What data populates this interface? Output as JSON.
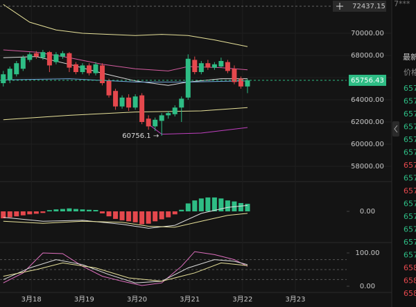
{
  "chart_data": [
    {
      "type": "candlestick",
      "up_color": "#2ebd85",
      "down_color": "#e5484d",
      "x": [
        0,
        1,
        2,
        3,
        4,
        5,
        6,
        7,
        8,
        9,
        10,
        11,
        12,
        13,
        14,
        15,
        16,
        17,
        18,
        19,
        20,
        21,
        22,
        23,
        24,
        25,
        26,
        27,
        28,
        29,
        30,
        31,
        32,
        33,
        34,
        35,
        36,
        37
      ],
      "open": [
        65500,
        65800,
        66300,
        66800,
        67600,
        68200,
        67800,
        68300,
        67400,
        67900,
        68200,
        67200,
        66500,
        67100,
        66400,
        67100,
        65700,
        64800,
        63400,
        64200,
        63300,
        64400,
        62300,
        61600,
        62100,
        62600,
        62700,
        63300,
        64200,
        67600,
        66500,
        67300,
        66900,
        67000,
        67400,
        66800,
        65900,
        65200
      ],
      "high": [
        66600,
        67000,
        67500,
        68000,
        68300,
        68400,
        68500,
        68400,
        68300,
        68400,
        68300,
        67400,
        67300,
        67300,
        67400,
        67300,
        65900,
        65000,
        64400,
        64500,
        64500,
        64600,
        62600,
        62400,
        62800,
        63000,
        63500,
        64300,
        68100,
        67900,
        67500,
        67600,
        67400,
        67800,
        67600,
        67100,
        66100,
        65900
      ],
      "low": [
        65200,
        65500,
        66100,
        66600,
        67400,
        67700,
        67600,
        66500,
        67200,
        67700,
        66500,
        66300,
        66300,
        66200,
        66200,
        65300,
        64200,
        63100,
        63200,
        63000,
        63100,
        61800,
        61300,
        61200,
        60756.1,
        62300,
        62500,
        62000,
        64000,
        66300,
        66300,
        66700,
        66700,
        66900,
        66400,
        65400,
        65000,
        64600
      ],
      "close": [
        66300,
        66800,
        67300,
        67800,
        68100,
        67900,
        68300,
        67100,
        68100,
        68200,
        66900,
        66500,
        67100,
        66400,
        67200,
        65500,
        64400,
        63400,
        64200,
        63300,
        64300,
        62000,
        61600,
        62200,
        62600,
        62800,
        63300,
        64100,
        67700,
        66500,
        67300,
        66900,
        67200,
        67500,
        66600,
        65600,
        65200,
        65756.43
      ],
      "lines": [
        {
          "color": "#e8e29a",
          "x": [
            0,
            4,
            8,
            12,
            16,
            20,
            24,
            28,
            32,
            37
          ],
          "values": [
            72600,
            71000,
            70300,
            70000,
            69900,
            69800,
            69900,
            69800,
            69400,
            68800
          ]
        },
        {
          "color": "#d45ca0",
          "x": [
            0,
            5,
            10,
            15,
            20,
            25,
            28,
            33,
            37
          ],
          "values": [
            68500,
            68300,
            67800,
            67200,
            66800,
            66600,
            67000,
            66900,
            66700
          ]
        },
        {
          "color": "#e0e0e0",
          "x": [
            0,
            5,
            10,
            15,
            20,
            25,
            28,
            33,
            37
          ],
          "values": [
            67800,
            67900,
            67200,
            66400,
            65700,
            65300,
            65600,
            65900,
            65900
          ]
        },
        {
          "color": "#6fa8dc",
          "x": [
            0,
            10,
            20,
            28,
            37
          ],
          "values": [
            65800,
            65900,
            65600,
            65600,
            65700
          ]
        },
        {
          "color": "#e8e29a",
          "x": [
            0,
            10,
            20,
            30,
            37
          ],
          "values": [
            62200,
            62600,
            62900,
            63000,
            63300
          ]
        },
        {
          "color": "#c040c0",
          "x": [
            22,
            24,
            30,
            37
          ],
          "values": [
            61800,
            60900,
            61000,
            61500
          ]
        }
      ],
      "xlim": [
        -0.5,
        51.5
      ],
      "ylim": [
        57000,
        73000
      ],
      "yticks": [
        {
          "value": 58000,
          "label": "58000.00"
        },
        {
          "value": 60000,
          "label": "60000.00"
        },
        {
          "value": 62000,
          "label": "62000.00"
        },
        {
          "value": 64000,
          "label": "64000.00"
        },
        {
          "value": 66000,
          "label": "66000.00"
        },
        {
          "value": 68000,
          "label": "68000.00"
        },
        {
          "value": 70000,
          "label": "70000.00"
        }
      ],
      "xticks": [
        {
          "value": 4.25,
          "label": "3月18"
        },
        {
          "value": 12.25,
          "label": "3月19"
        },
        {
          "value": 20.25,
          "label": "3月20"
        },
        {
          "value": 28.25,
          "label": "3月21"
        },
        {
          "value": 36.25,
          "label": "3月22"
        },
        {
          "value": 44.25,
          "label": "3月23"
        }
      ],
      "high_marker": 72437.15,
      "annotations": [
        {
          "x": 24,
          "y": 60756.1,
          "text": "60756.1 →"
        }
      ],
      "grid": true
    },
    {
      "type": "bar",
      "x": [
        0,
        1,
        2,
        3,
        4,
        5,
        6,
        7,
        8,
        9,
        10,
        11,
        12,
        13,
        14,
        15,
        16,
        17,
        18,
        19,
        20,
        21,
        22,
        23,
        24,
        25,
        26,
        27,
        28,
        29,
        30,
        31,
        32,
        33,
        34,
        35,
        36,
        37
      ],
      "values": [
        -350,
        -300,
        -250,
        -200,
        -150,
        -120,
        -80,
        60,
        100,
        120,
        150,
        120,
        100,
        80,
        70,
        -100,
        -250,
        -380,
        -450,
        -500,
        -550,
        -650,
        -620,
        -500,
        -400,
        -300,
        -150,
        80,
        400,
        550,
        650,
        700,
        700,
        650,
        550,
        500,
        420,
        380
      ],
      "up_color": "#2ebd85",
      "down_color": "#e5484d",
      "lines": [
        {
          "color": "#e0e0e0",
          "x": [
            0,
            6,
            12,
            18,
            22,
            26,
            30,
            34,
            37
          ],
          "values": [
            -300,
            -500,
            -450,
            -650,
            -850,
            -700,
            -100,
            200,
            300
          ]
        },
        {
          "color": "#e8e29a",
          "x": [
            0,
            6,
            12,
            18,
            22,
            26,
            30,
            34,
            37
          ],
          "values": [
            -500,
            -600,
            -500,
            -550,
            -750,
            -800,
            -500,
            -200,
            -100
          ]
        }
      ],
      "xlim": [
        -0.5,
        51.5
      ],
      "ylim": [
        -1500,
        1500
      ],
      "yticks": [
        {
          "value": 0,
          "label": "0.00"
        }
      ]
    },
    {
      "type": "line",
      "lines": [
        {
          "color": "#e070c0",
          "x": [
            0,
            3,
            6,
            9,
            12,
            15,
            18,
            21,
            24,
            27,
            29,
            32,
            35,
            37
          ],
          "values": [
            10,
            40,
            100,
            98,
            60,
            30,
            15,
            2,
            10,
            60,
            104,
            95,
            80,
            60
          ]
        },
        {
          "color": "#e0e0e0",
          "x": [
            0,
            4,
            8,
            12,
            16,
            20,
            24,
            28,
            32,
            35,
            37
          ],
          "values": [
            20,
            55,
            80,
            65,
            35,
            10,
            15,
            55,
            80,
            75,
            65
          ]
        },
        {
          "color": "#e8e29a",
          "x": [
            0,
            5,
            9,
            14,
            19,
            24,
            29,
            33,
            37
          ],
          "values": [
            30,
            50,
            70,
            55,
            25,
            15,
            40,
            70,
            62
          ]
        }
      ],
      "levels": [
        80,
        50,
        20
      ],
      "xlim": [
        -0.5,
        51.5
      ],
      "ylim": [
        -10,
        110
      ],
      "yticks": [
        {
          "value": 0,
          "label": "0.00"
        },
        {
          "value": 100,
          "label": "100.00"
        }
      ]
    }
  ],
  "side_panel": {
    "top": "7***",
    "header": "最新",
    "subheader": "价格",
    "rows": [
      {
        "text": "657",
        "color": "#2ebd85"
      },
      {
        "text": "657",
        "color": "#2ebd85"
      },
      {
        "text": "657",
        "color": "#2ebd85"
      },
      {
        "text": "657",
        "color": "#2ebd85"
      },
      {
        "text": "657",
        "color": "#2ebd85"
      },
      {
        "text": "657",
        "color": "#2ebd85"
      },
      {
        "text": "657",
        "color": "#e5484d"
      },
      {
        "text": "657",
        "color": "#2ebd85"
      },
      {
        "text": "657",
        "color": "#e5484d"
      },
      {
        "text": "657",
        "color": "#2ebd85"
      },
      {
        "text": "657",
        "color": "#2ebd85"
      },
      {
        "text": "657",
        "color": "#2ebd85"
      },
      {
        "text": "657",
        "color": "#2ebd85"
      },
      {
        "text": "657",
        "color": "#2ebd85"
      },
      {
        "text": "658",
        "color": "#e5484d"
      },
      {
        "text": "658",
        "color": "#e5484d"
      },
      {
        "text": "658",
        "color": "#e5484d"
      }
    ]
  }
}
